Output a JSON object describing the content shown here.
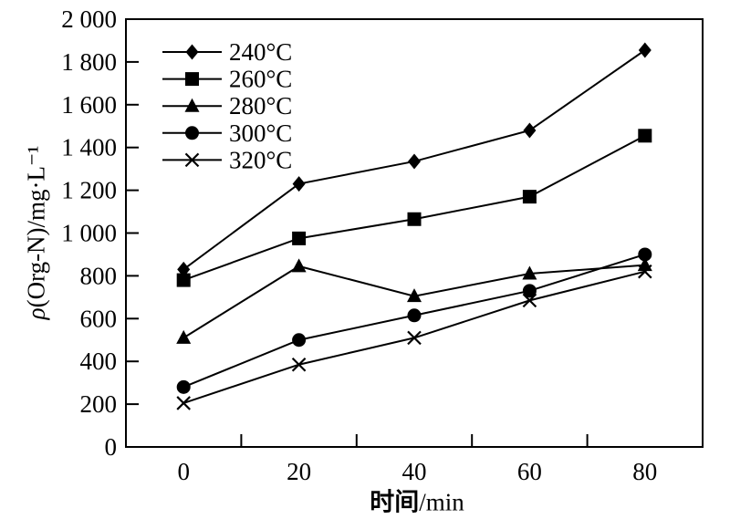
{
  "chart_data": {
    "type": "line",
    "title": "",
    "xlabel": "时间/min",
    "ylabel": "ρ(Org-N)/mg·L⁻¹",
    "x": [
      0,
      20,
      40,
      60,
      80
    ],
    "series": [
      {
        "name": "240°C",
        "marker": "diamond",
        "values": [
          830,
          1230,
          1335,
          1480,
          1855
        ]
      },
      {
        "name": "260°C",
        "marker": "square",
        "values": [
          780,
          975,
          1065,
          1170,
          1455
        ]
      },
      {
        "name": "280°C",
        "marker": "triangle",
        "values": [
          510,
          845,
          705,
          810,
          850
        ]
      },
      {
        "name": "300°C",
        "marker": "circle",
        "values": [
          280,
          500,
          615,
          730,
          900
        ]
      },
      {
        "name": "320°C",
        "marker": "x",
        "values": [
          205,
          385,
          510,
          685,
          820
        ]
      }
    ],
    "xlim": [
      -10,
      90
    ],
    "ylim": [
      0,
      2000
    ],
    "x_tick_label_positions": [
      0,
      20,
      40,
      60,
      80
    ],
    "x_tick_labels": [
      "0",
      "20",
      "40",
      "60",
      "80"
    ],
    "x_minor_tick_positions": [
      10,
      30,
      50,
      70
    ],
    "y_tick_positions": [
      0,
      200,
      400,
      600,
      800,
      1000,
      1200,
      1400,
      1600,
      1800,
      2000
    ],
    "y_tick_labels": [
      "0",
      "200",
      "400",
      "600",
      "800",
      "1 000",
      "1 200",
      "1 400",
      "1 600",
      "1 800",
      "2 000"
    ],
    "grid": false,
    "legend_position": "top-left",
    "legend_entries": [
      "240°C",
      "260°C",
      "280°C",
      "300°C",
      "320°C"
    ],
    "colors": {
      "foreground": "#000000",
      "background": "#ffffff"
    }
  }
}
